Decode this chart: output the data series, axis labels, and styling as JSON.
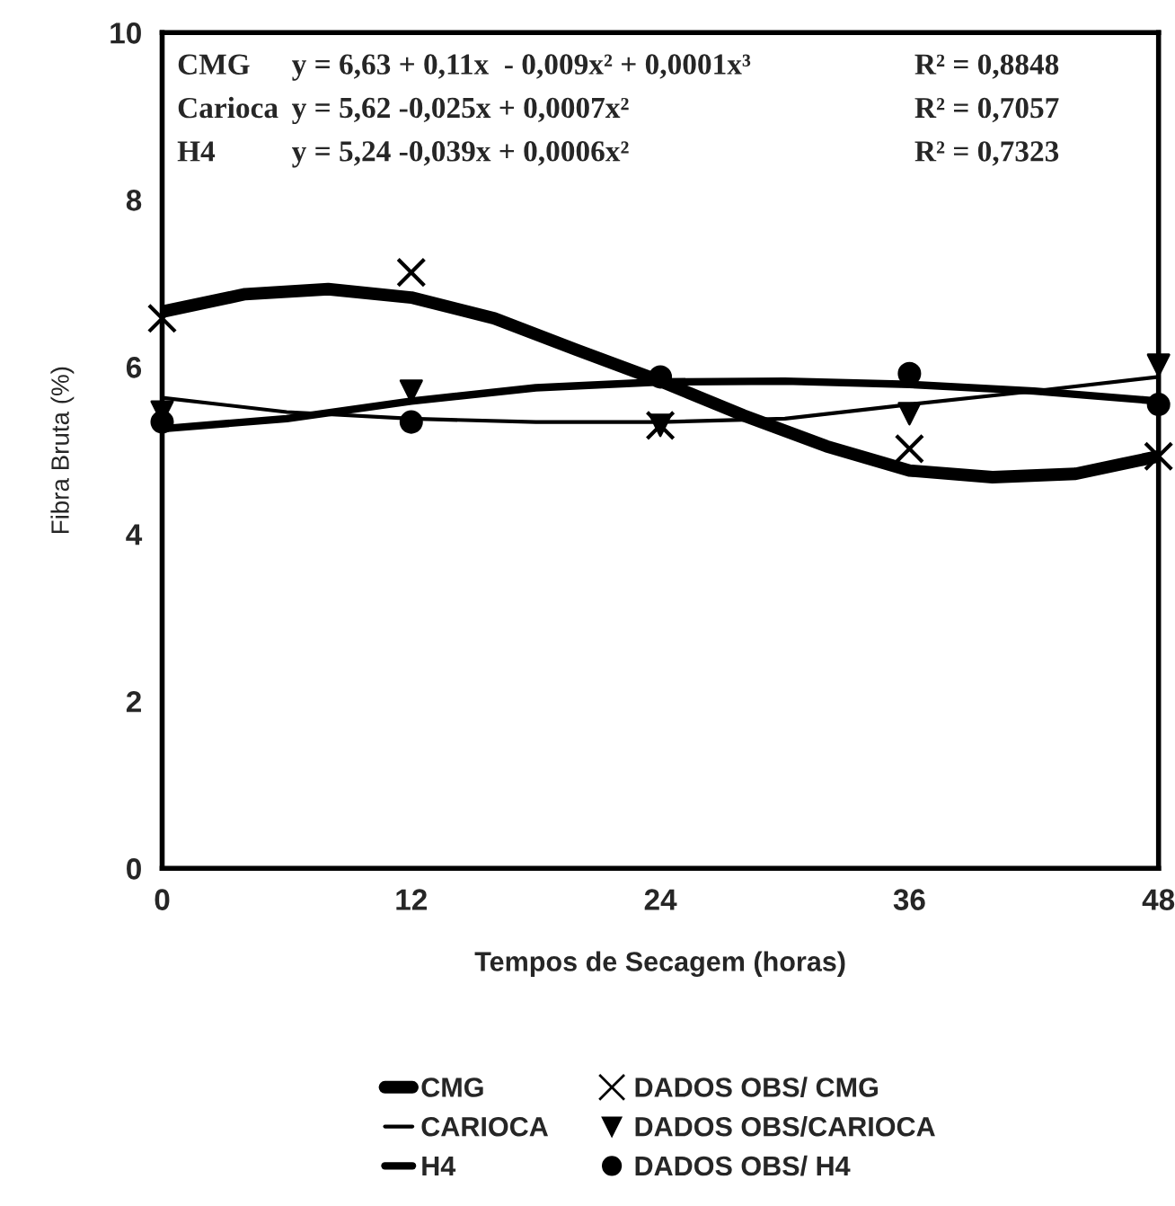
{
  "chart_data": {
    "type": "line",
    "xlabel": "Tempos de Secagem (horas)",
    "ylabel": "Fibra Bruta (%)",
    "xlim": [
      0,
      48
    ],
    "xticks": [
      0,
      12,
      24,
      36,
      48
    ],
    "ylim": [
      0,
      10
    ],
    "yticks": [
      0,
      2,
      4,
      6,
      8,
      10
    ],
    "grid": false,
    "legend": "bottom",
    "annotations": [
      "CMG",
      "y = 6,63 + 0,11x  - 0,009x² + 0,0001x³",
      "R² = 0,8848",
      "Carioca",
      "y = 5,62 -0,025x + 0,0007x²",
      "R² = 0,7057",
      "H4",
      "y = 5,24 -0,039x + 0,0006x²",
      "R² = 0,7323"
    ],
    "series": [
      {
        "name": "CMG",
        "color": "#000000",
        "marker": "none",
        "x": [
          0,
          4,
          8,
          12,
          16,
          20,
          24,
          28,
          32,
          36,
          40,
          44,
          48
        ],
        "values": [
          6.66,
          6.87,
          6.93,
          6.83,
          6.58,
          6.2,
          5.83,
          5.42,
          5.05,
          4.76,
          4.68,
          4.72,
          4.93
        ]
      },
      {
        "name": "CARIOCA",
        "color": "#000000",
        "marker": "none",
        "x": [
          0,
          6,
          12,
          18,
          24,
          30,
          36,
          42,
          48
        ],
        "values": [
          5.63,
          5.46,
          5.38,
          5.34,
          5.34,
          5.38,
          5.55,
          5.71,
          5.88
        ]
      },
      {
        "name": "H4",
        "color": "#000000",
        "marker": "none",
        "x": [
          0,
          6,
          12,
          18,
          24,
          30,
          36,
          42,
          48
        ],
        "values": [
          5.26,
          5.38,
          5.59,
          5.75,
          5.82,
          5.83,
          5.79,
          5.71,
          5.59
        ]
      },
      {
        "name": "DADOS OBS/ CMG",
        "type": "scatter",
        "color": "#000000",
        "marker": "cross",
        "x": [
          0,
          12,
          24,
          36,
          48
        ],
        "values": [
          6.58,
          7.13,
          5.3,
          5.02,
          4.93
        ]
      },
      {
        "name": "DADOS OBS/CARIOCA",
        "type": "scatter",
        "color": "#000000",
        "marker": "triangle",
        "x": [
          0,
          12,
          24,
          36,
          48
        ],
        "values": [
          5.46,
          5.71,
          5.3,
          5.44,
          6.02
        ]
      },
      {
        "name": "DADOS OBS/ H4",
        "type": "scatter",
        "color": "#000000",
        "marker": "circle",
        "x": [
          0,
          12,
          24,
          36,
          48
        ],
        "values": [
          5.34,
          5.34,
          5.88,
          5.92,
          5.55
        ]
      }
    ]
  }
}
